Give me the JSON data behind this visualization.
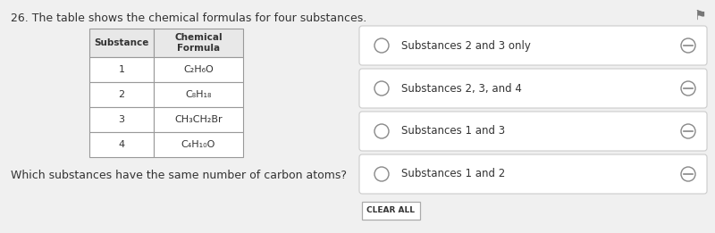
{
  "title": "26. The table shows the chemical formulas for four substances.",
  "question": "Which substances have the same number of carbon atoms?",
  "bg_color": "#f0f0f0",
  "table_headers": [
    "Substance",
    "Chemical\nFormula"
  ],
  "table_rows": [
    [
      "1",
      "C₂H₆O"
    ],
    [
      "2",
      "C₈H₁₈"
    ],
    [
      "3",
      "CH₃CH₂Br"
    ],
    [
      "4",
      "C₄H₁₀O"
    ]
  ],
  "choices": [
    "Substances 2 and 3 only",
    "Substances 2, 3, and 4",
    "Substances 1 and 3",
    "Substances 1 and 2"
  ],
  "font_color": "#333333",
  "table_header_bg": "#e8e8e8",
  "table_border_color": "#999999",
  "choice_box_color": "#ffffff",
  "choice_box_border": "#cccccc",
  "flag_color": "#777777"
}
